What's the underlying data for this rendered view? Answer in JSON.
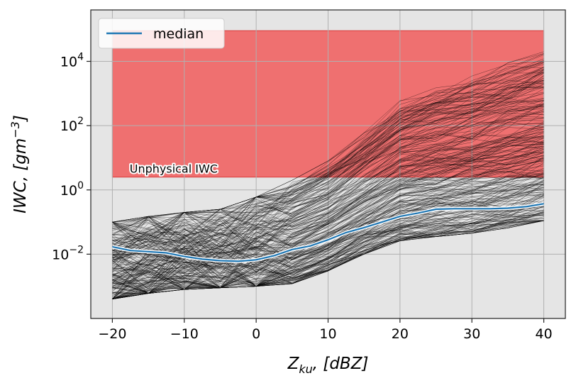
{
  "chart_data": {
    "type": "line",
    "title": "",
    "xlabel": "Z_ku, [dBZ]",
    "ylabel": "IWC, [gm^-3]",
    "xlabel_parts": {
      "main": "Z",
      "sub": "ku",
      "rest": ", [dBZ]"
    },
    "ylabel_parts": {
      "main": "IWC, [gm",
      "sup": "−3",
      "rest": "]"
    },
    "xlim": [
      -23,
      43
    ],
    "ylim_log10": [
      -4,
      5.6
    ],
    "yscale": "log",
    "grid": true,
    "legend_placement": "top-left",
    "background": "#e5e5e5",
    "x_ticks": [
      -20,
      -10,
      0,
      10,
      20,
      30,
      40
    ],
    "x_tick_labels": [
      "−20",
      "−10",
      "0",
      "10",
      "20",
      "30",
      "40"
    ],
    "y_ticks_log10": [
      -2,
      0,
      2,
      4
    ],
    "y_tick_labels": [
      {
        "base": "10",
        "exp": "−2"
      },
      {
        "base": "10",
        "exp": "0"
      },
      {
        "base": "10",
        "exp": "2"
      },
      {
        "base": "10",
        "exp": "4"
      }
    ],
    "series": [
      {
        "name": "median",
        "color": "#1f77b4",
        "x": [
          -20,
          -17.5,
          -15,
          -12.5,
          -10,
          -7.5,
          -5,
          -2.5,
          0,
          2.5,
          5,
          7.5,
          10,
          12.5,
          15,
          17.5,
          20,
          22.5,
          25,
          27.5,
          30,
          32.5,
          35,
          37.5,
          40
        ],
        "y": [
          0.017,
          0.013,
          0.012,
          0.011,
          0.0085,
          0.007,
          0.0063,
          0.006,
          0.0067,
          0.009,
          0.014,
          0.018,
          0.028,
          0.047,
          0.067,
          0.1,
          0.15,
          0.19,
          0.25,
          0.26,
          0.26,
          0.26,
          0.27,
          0.3,
          0.37
        ]
      }
    ],
    "ensemble": {
      "color": "#000000",
      "min": {
        "x": [
          -20,
          -15,
          -10,
          -5,
          0,
          5,
          10,
          15,
          20,
          25,
          30,
          35,
          40
        ],
        "y": [
          0.0004,
          0.0006,
          0.0008,
          0.0009,
          0.001,
          0.0012,
          0.003,
          0.01,
          0.026,
          0.035,
          0.045,
          0.065,
          0.11
        ]
      },
      "max": {
        "x": [
          -20,
          -15,
          -10,
          -5,
          0,
          5,
          10,
          15,
          20,
          25,
          30,
          35,
          40
        ],
        "y": [
          0.1,
          0.15,
          0.2,
          0.25,
          0.6,
          2,
          8,
          60,
          600,
          1500,
          3500,
          9000,
          20000
        ]
      }
    },
    "shaded_region": {
      "label": "Unphysical IWC",
      "x": [
        -20,
        40
      ],
      "y": [
        2.5,
        90000
      ],
      "color": "#f06060"
    }
  }
}
